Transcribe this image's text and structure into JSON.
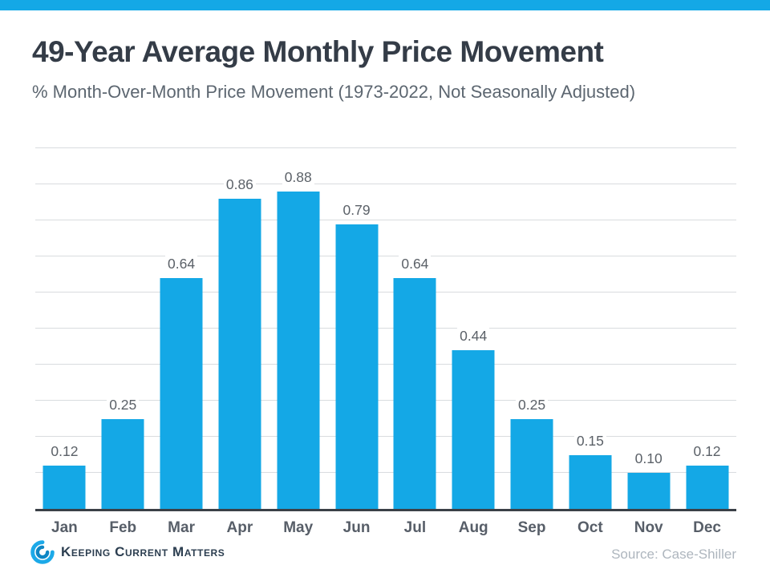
{
  "header": {
    "title": "49-Year Average Monthly Price Movement",
    "subtitle": "% Month-Over-Month Price Movement (1973-2022, Not Seasonally Adjusted)"
  },
  "chart_data": {
    "type": "bar",
    "categories": [
      "Jan",
      "Feb",
      "Mar",
      "Apr",
      "May",
      "Jun",
      "Jul",
      "Aug",
      "Sep",
      "Oct",
      "Nov",
      "Dec"
    ],
    "values": [
      0.12,
      0.25,
      0.64,
      0.86,
      0.88,
      0.79,
      0.64,
      0.44,
      0.25,
      0.15,
      0.1,
      0.12
    ],
    "value_labels": [
      "0.12",
      "0.25",
      "0.64",
      "0.86",
      "0.88",
      "0.79",
      "0.64",
      "0.44",
      "0.25",
      "0.15",
      "0.10",
      "0.12"
    ],
    "title": "49-Year Average Monthly Price Movement",
    "xlabel": "",
    "ylabel": "",
    "ylim": [
      0,
      1.0
    ],
    "gridline_step": 0.1,
    "grid": true,
    "legend_position": "none",
    "bar_color": "#14a8e6",
    "gridline_color": "#d9dcdf",
    "axis_color": "#3b4047"
  },
  "colors": {
    "accent_blue": "#14a8e6",
    "title_text": "#343c47",
    "subtitle_text": "#5c6670",
    "label_text": "#5b6168",
    "source_text": "#aeb6be"
  },
  "footer": {
    "logo_text": "Keeping Current Matters",
    "source": "Source: Case-Shiller"
  }
}
